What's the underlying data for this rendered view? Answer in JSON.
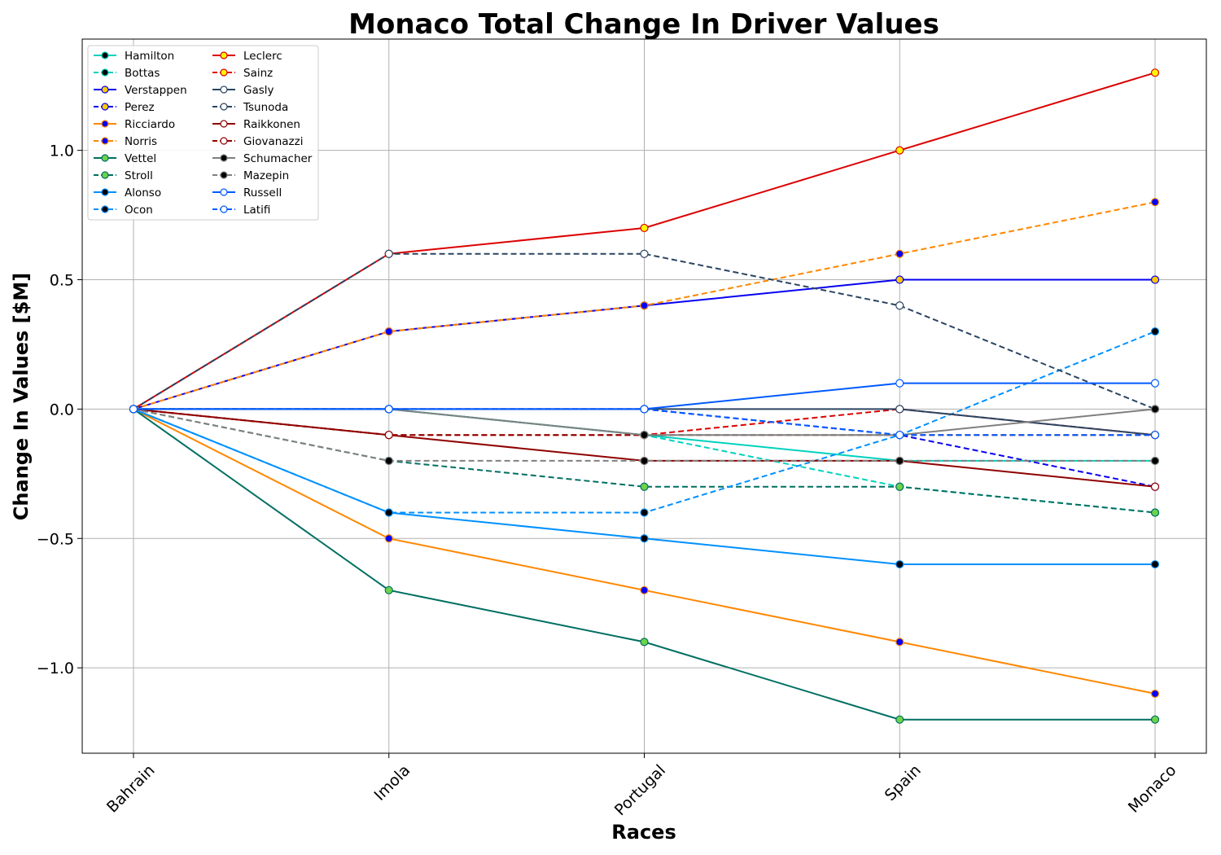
{
  "chart_data": {
    "type": "line",
    "title": "Monaco Total Change In Driver Values",
    "xlabel": "Races",
    "ylabel": "Change In Values [$M]",
    "categories": [
      "Bahrain",
      "Imola",
      "Portugal",
      "Spain",
      "Monaco"
    ],
    "ylim": [
      -1.33,
      1.43
    ],
    "yticks": [
      -1.0,
      -0.5,
      0.0,
      0.5,
      1.0
    ],
    "ytick_labels": [
      "−1.0",
      "−0.5",
      "0.0",
      "0.5",
      "1.0"
    ],
    "grid": true,
    "legend_position": "top-left",
    "legend_columns": 2,
    "series": [
      {
        "name": "Hamilton",
        "values": [
          0,
          0,
          -0.1,
          -0.2,
          -0.2
        ],
        "color": "#00d2be",
        "dash": false,
        "marker_fill": "#000000",
        "marker_edge": "#00d2be"
      },
      {
        "name": "Bottas",
        "values": [
          0,
          0,
          -0.1,
          -0.3,
          -0.4
        ],
        "color": "#00d2be",
        "dash": true,
        "marker_fill": "#000000",
        "marker_edge": "#00d2be"
      },
      {
        "name": "Verstappen",
        "values": [
          0,
          0.3,
          0.4,
          0.5,
          0.5
        ],
        "color": "#0600ef",
        "dash": false,
        "marker_fill": "#ffc906",
        "marker_edge": "#0600ef"
      },
      {
        "name": "Perez",
        "values": [
          0,
          0,
          0,
          -0.1,
          -0.3
        ],
        "color": "#0600ef",
        "dash": true,
        "marker_fill": "#ffc906",
        "marker_edge": "#0600ef"
      },
      {
        "name": "Ricciardo",
        "values": [
          0,
          -0.5,
          -0.7,
          -0.9,
          -1.1
        ],
        "color": "#ff8700",
        "dash": false,
        "marker_fill": "#0000ff",
        "marker_edge": "#ff8700"
      },
      {
        "name": "Norris",
        "values": [
          0,
          0.3,
          0.4,
          0.6,
          0.8
        ],
        "color": "#ff8700",
        "dash": true,
        "marker_fill": "#0000ff",
        "marker_edge": "#ff8700"
      },
      {
        "name": "Vettel",
        "values": [
          0,
          -0.7,
          -0.9,
          -1.2,
          -1.2
        ],
        "color": "#006f62",
        "dash": false,
        "marker_fill": "#6cd34a",
        "marker_edge": "#006f62"
      },
      {
        "name": "Stroll",
        "values": [
          0,
          -0.2,
          -0.3,
          -0.3,
          -0.4
        ],
        "color": "#006f62",
        "dash": true,
        "marker_fill": "#6cd34a",
        "marker_edge": "#006f62"
      },
      {
        "name": "Alonso",
        "values": [
          0,
          -0.4,
          -0.5,
          -0.6,
          -0.6
        ],
        "color": "#0090ff",
        "dash": false,
        "marker_fill": "#000000",
        "marker_edge": "#0090ff"
      },
      {
        "name": "Ocon",
        "values": [
          0,
          -0.4,
          -0.4,
          -0.1,
          0.3
        ],
        "color": "#0090ff",
        "dash": true,
        "marker_fill": "#000000",
        "marker_edge": "#0090ff"
      },
      {
        "name": "Leclerc",
        "values": [
          0,
          0.6,
          0.7,
          1.0,
          1.3
        ],
        "color": "#dc0000",
        "dash": false,
        "marker_fill": "#fff500",
        "marker_edge": "#dc0000"
      },
      {
        "name": "Sainz",
        "values": [
          0,
          -0.1,
          -0.1,
          0,
          -0.1
        ],
        "color": "#dc0000",
        "dash": true,
        "marker_fill": "#fff500",
        "marker_edge": "#dc0000"
      },
      {
        "name": "Gasly",
        "values": [
          0,
          0,
          0,
          0,
          -0.1
        ],
        "color": "#2b4562",
        "dash": false,
        "marker_fill": "#ffffff",
        "marker_edge": "#2b4562"
      },
      {
        "name": "Tsunoda",
        "values": [
          0,
          0.6,
          0.6,
          0.4,
          0
        ],
        "color": "#2b4562",
        "dash": true,
        "marker_fill": "#ffffff",
        "marker_edge": "#2b4562"
      },
      {
        "name": "Raikkonen",
        "values": [
          0,
          -0.1,
          -0.2,
          -0.2,
          -0.3
        ],
        "color": "#900000",
        "dash": false,
        "marker_fill": "#ffffff",
        "marker_edge": "#900000"
      },
      {
        "name": "Giovanazzi",
        "values": [
          0,
          -0.1,
          -0.1,
          -0.1,
          -0.1
        ],
        "color": "#900000",
        "dash": true,
        "marker_fill": "#ffffff",
        "marker_edge": "#900000"
      },
      {
        "name": "Schumacher",
        "values": [
          0,
          0,
          -0.1,
          -0.1,
          0
        ],
        "color": "#808080",
        "dash": false,
        "marker_fill": "#000000",
        "marker_edge": "#808080"
      },
      {
        "name": "Mazepin",
        "values": [
          0,
          -0.2,
          -0.2,
          -0.2,
          -0.2
        ],
        "color": "#808080",
        "dash": true,
        "marker_fill": "#000000",
        "marker_edge": "#808080"
      },
      {
        "name": "Russell",
        "values": [
          0,
          0,
          0,
          0.1,
          0.1
        ],
        "color": "#005aff",
        "dash": false,
        "marker_fill": "#ffffff",
        "marker_edge": "#005aff"
      },
      {
        "name": "Latifi",
        "values": [
          0,
          0,
          0,
          -0.1,
          -0.1
        ],
        "color": "#005aff",
        "dash": true,
        "marker_fill": "#ffffff",
        "marker_edge": "#005aff"
      }
    ]
  }
}
